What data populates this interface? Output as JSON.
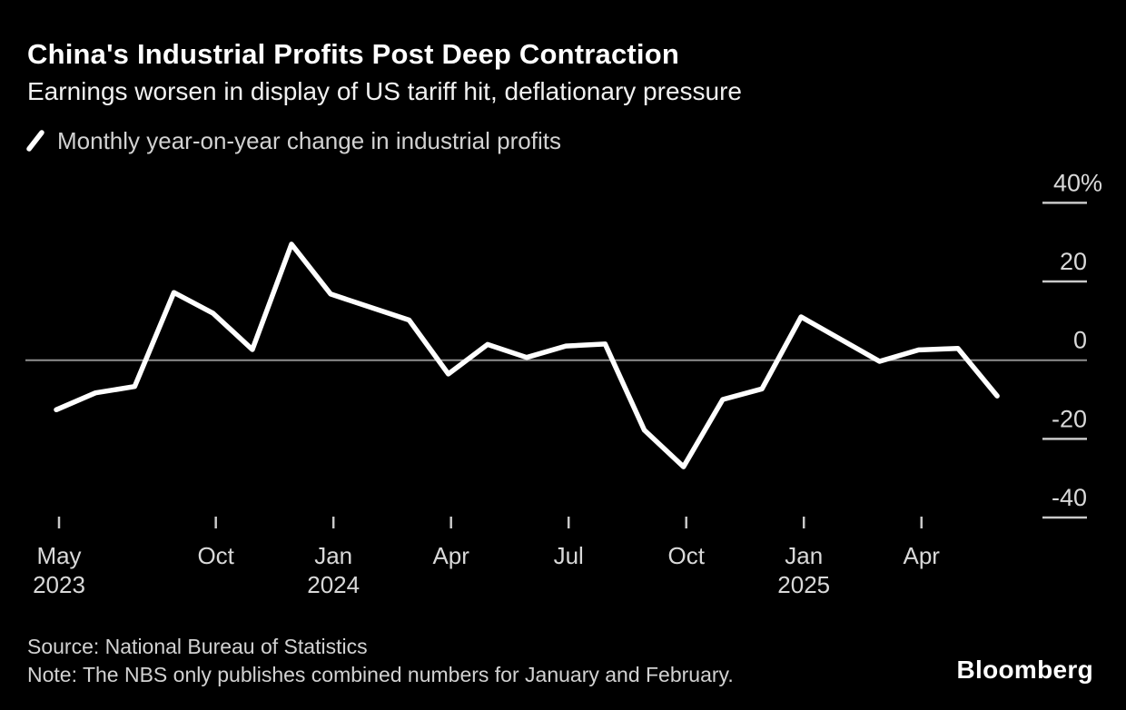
{
  "header": {
    "title": "China's Industrial Profits Post Deep Contraction",
    "subtitle": "Earnings worsen in display of US tariff hit, deflationary pressure"
  },
  "legend": {
    "label": "Monthly year-on-year change in industrial profits"
  },
  "chart_data": {
    "type": "line",
    "title": "China's Industrial Profits Post Deep Contraction",
    "subtitle": "Earnings worsen in display of US tariff hit, deflationary pressure",
    "xlabel": "",
    "ylabel": "%",
    "ylim": [
      -45,
      45
    ],
    "grid": "zero-line-only",
    "legend_position": "top-left",
    "y_ticks": [
      {
        "label": "40%",
        "value": 40
      },
      {
        "label": "20",
        "value": 20
      },
      {
        "label": "0",
        "value": 0
      },
      {
        "label": "-20",
        "value": -20
      },
      {
        "label": "-40",
        "value": -40
      }
    ],
    "x_ticks": [
      {
        "label": "May",
        "year": "2023",
        "slot": 0
      },
      {
        "label": "Oct",
        "slot": 4
      },
      {
        "label": "Jan",
        "year": "2024",
        "slot": 7
      },
      {
        "label": "Apr",
        "slot": 10
      },
      {
        "label": "Jul",
        "slot": 13
      },
      {
        "label": "Oct",
        "slot": 16
      },
      {
        "label": "Jan",
        "year": "2025",
        "slot": 19
      },
      {
        "label": "Apr",
        "slot": 22
      }
    ],
    "series": [
      {
        "name": "Monthly year-on-year change in industrial profits",
        "color": "#ffffff",
        "points": [
          {
            "label": "May 2023",
            "slot": 0,
            "value": -12.6
          },
          {
            "label": "Jun 2023",
            "slot": 1,
            "value": -8.3
          },
          {
            "label": "Jul 2023",
            "slot": 2,
            "value": -6.7
          },
          {
            "label": "Aug 2023",
            "slot": 3,
            "value": 17.2
          },
          {
            "label": "Sep 2023",
            "slot": 4,
            "value": 11.9
          },
          {
            "label": "Oct 2023",
            "slot": 5,
            "value": 2.7
          },
          {
            "label": "Nov 2023",
            "slot": 6,
            "value": 29.5
          },
          {
            "label": "Dec 2023",
            "slot": 7,
            "value": 16.8
          },
          {
            "label": "Jan-Feb 2024",
            "slot": 9,
            "value": 10.2
          },
          {
            "label": "Mar 2024",
            "slot": 10,
            "value": -3.5
          },
          {
            "label": "Apr 2024",
            "slot": 11,
            "value": 4.0
          },
          {
            "label": "May 2024",
            "slot": 12,
            "value": 0.7
          },
          {
            "label": "Jun 2024",
            "slot": 13,
            "value": 3.6
          },
          {
            "label": "Jul 2024",
            "slot": 14,
            "value": 4.1
          },
          {
            "label": "Aug 2024",
            "slot": 15,
            "value": -17.8
          },
          {
            "label": "Sep 2024",
            "slot": 16,
            "value": -27.1
          },
          {
            "label": "Oct 2024",
            "slot": 17,
            "value": -10.0
          },
          {
            "label": "Nov 2024",
            "slot": 18,
            "value": -7.3
          },
          {
            "label": "Dec 2024",
            "slot": 19,
            "value": 11.0
          },
          {
            "label": "Jan-Feb 2025",
            "slot": 21,
            "value": -0.3
          },
          {
            "label": "Mar 2025",
            "slot": 22,
            "value": 2.6
          },
          {
            "label": "Apr 2025",
            "slot": 23,
            "value": 3.0
          },
          {
            "label": "May 2025",
            "slot": 24,
            "value": -9.1
          }
        ]
      }
    ]
  },
  "footer": {
    "source": "Source: National Bureau of Statistics",
    "note": "Note: The NBS only publishes combined numbers for January and February.",
    "brand": "Bloomberg"
  },
  "colors": {
    "background": "#000000",
    "line": "#ffffff",
    "zero_line": "#8f8f8f",
    "tick": "#c9c9c9",
    "axis_text": "#d9d9d9"
  }
}
